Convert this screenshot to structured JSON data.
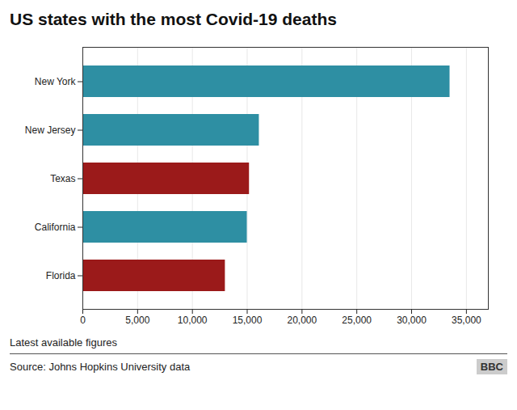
{
  "chart_data": {
    "type": "bar",
    "title": "US states with the most Covid-19 deaths",
    "orientation": "horizontal",
    "categories": [
      "Florida",
      "California",
      "Texas",
      "New Jersey",
      "New York"
    ],
    "values": [
      13000,
      15000,
      15200,
      16100,
      33500
    ],
    "colors": [
      "#9b1a1a",
      "#2e8fa3",
      "#9b1a1a",
      "#2e8fa3",
      "#2e8fa3"
    ],
    "xlim": [
      0,
      37000
    ],
    "xticks": [
      0,
      {
        "value": 5000,
        "label": "5,000"
      },
      {
        "value": 10000,
        "label": "10,000"
      },
      {
        "value": 15000,
        "label": "15,000"
      },
      {
        "value": 20000,
        "label": "20,000"
      },
      {
        "value": 25000,
        "label": "25,000"
      },
      {
        "value": 30000,
        "label": "30,000"
      },
      {
        "value": 35000,
        "label": "35,000"
      }
    ],
    "grid": true,
    "note": "Latest available figures",
    "source": "Source: Johns Hopkins University data",
    "credit": "BBC"
  }
}
